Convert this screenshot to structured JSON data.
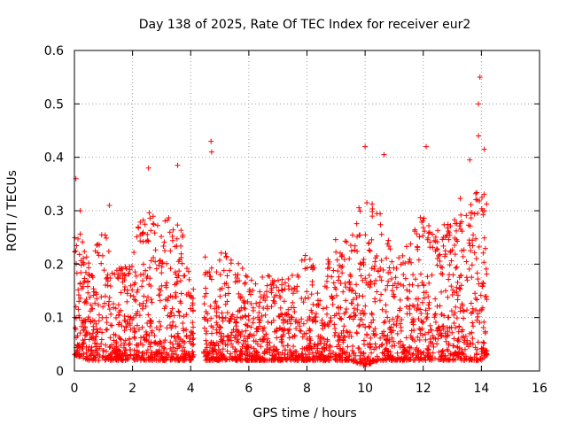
{
  "chart_data": {
    "type": "scatter",
    "title": "Day 138 of 2025, Rate Of TEC Index for receiver eur2",
    "xlabel": "GPS time / hours",
    "ylabel": "ROTI / TECUs",
    "xlim": [
      0,
      16
    ],
    "ylim": [
      0,
      0.6
    ],
    "xticks": [
      "0",
      "2",
      "4",
      "6",
      "8",
      "10",
      "12",
      "14",
      "16"
    ],
    "yticks": [
      "0",
      "0.1",
      "0.2",
      "0.3",
      "0.4",
      "0.5",
      "0.6"
    ],
    "grid": true,
    "marker": "+",
    "color": "#ff0000",
    "series_name": "ROTI",
    "time_range": [
      0,
      14.2
    ],
    "gap": [
      4.1,
      4.45
    ],
    "notable_points": [
      {
        "x": 13.95,
        "y": 0.55
      },
      {
        "x": 13.9,
        "y": 0.5
      },
      {
        "x": 4.7,
        "y": 0.43
      },
      {
        "x": 4.72,
        "y": 0.41
      },
      {
        "x": 10.0,
        "y": 0.42
      },
      {
        "x": 10.65,
        "y": 0.405
      },
      {
        "x": 12.1,
        "y": 0.42
      },
      {
        "x": 13.9,
        "y": 0.44
      },
      {
        "x": 3.55,
        "y": 0.385
      },
      {
        "x": 2.55,
        "y": 0.38
      },
      {
        "x": 0.05,
        "y": 0.36
      },
      {
        "x": 13.6,
        "y": 0.395
      },
      {
        "x": 14.1,
        "y": 0.415
      },
      {
        "x": 0.2,
        "y": 0.3
      },
      {
        "x": 1.2,
        "y": 0.31
      },
      {
        "x": 9.95,
        "y": 0.01
      }
    ],
    "envelope": [
      {
        "x": 0.0,
        "lo": 0.03,
        "hi": 0.3
      },
      {
        "x": 0.5,
        "lo": 0.02,
        "hi": 0.2
      },
      {
        "x": 1.0,
        "lo": 0.02,
        "hi": 0.28
      },
      {
        "x": 1.5,
        "lo": 0.02,
        "hi": 0.19
      },
      {
        "x": 2.0,
        "lo": 0.02,
        "hi": 0.24
      },
      {
        "x": 2.5,
        "lo": 0.02,
        "hi": 0.33
      },
      {
        "x": 3.0,
        "lo": 0.02,
        "hi": 0.27
      },
      {
        "x": 3.5,
        "lo": 0.02,
        "hi": 0.33
      },
      {
        "x": 4.0,
        "lo": 0.02,
        "hi": 0.17
      },
      {
        "x": 4.5,
        "lo": 0.02,
        "hi": 0.22
      },
      {
        "x": 5.0,
        "lo": 0.02,
        "hi": 0.23
      },
      {
        "x": 5.5,
        "lo": 0.02,
        "hi": 0.21
      },
      {
        "x": 6.0,
        "lo": 0.02,
        "hi": 0.18
      },
      {
        "x": 6.5,
        "lo": 0.02,
        "hi": 0.19
      },
      {
        "x": 7.0,
        "lo": 0.02,
        "hi": 0.17
      },
      {
        "x": 7.5,
        "lo": 0.02,
        "hi": 0.18
      },
      {
        "x": 8.0,
        "lo": 0.02,
        "hi": 0.23
      },
      {
        "x": 8.5,
        "lo": 0.02,
        "hi": 0.18
      },
      {
        "x": 9.0,
        "lo": 0.02,
        "hi": 0.25
      },
      {
        "x": 9.5,
        "lo": 0.02,
        "hi": 0.26
      },
      {
        "x": 10.0,
        "lo": 0.01,
        "hi": 0.34
      },
      {
        "x": 10.5,
        "lo": 0.02,
        "hi": 0.3
      },
      {
        "x": 11.0,
        "lo": 0.02,
        "hi": 0.21
      },
      {
        "x": 11.5,
        "lo": 0.02,
        "hi": 0.25
      },
      {
        "x": 12.0,
        "lo": 0.02,
        "hi": 0.3
      },
      {
        "x": 12.5,
        "lo": 0.02,
        "hi": 0.28
      },
      {
        "x": 13.0,
        "lo": 0.02,
        "hi": 0.31
      },
      {
        "x": 13.5,
        "lo": 0.02,
        "hi": 0.34
      },
      {
        "x": 14.0,
        "lo": 0.02,
        "hi": 0.36
      },
      {
        "x": 14.2,
        "lo": 0.03,
        "hi": 0.33
      }
    ]
  }
}
